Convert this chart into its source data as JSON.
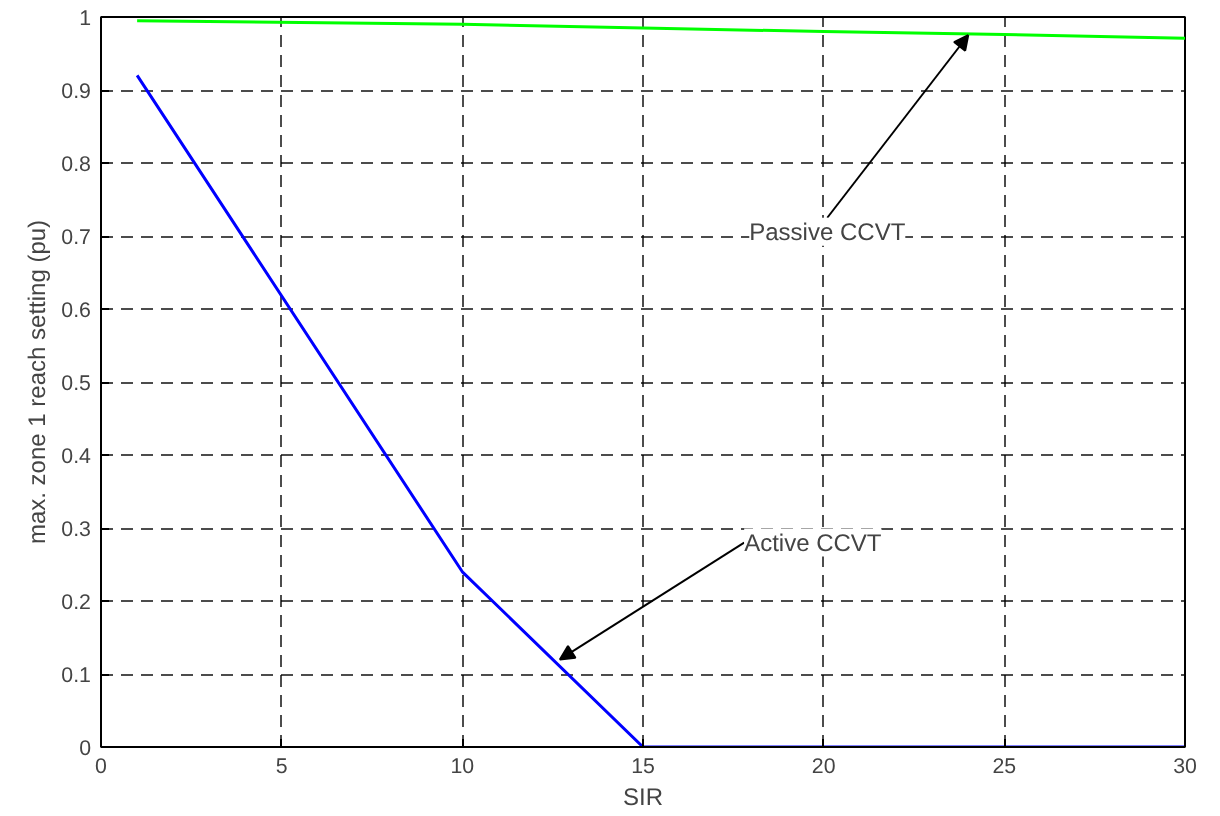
{
  "chart_data": {
    "type": "line",
    "xlabel": "SIR",
    "ylabel": "max. zone 1 reach setting (pu)",
    "x": [
      1,
      10,
      15,
      20,
      25,
      30
    ],
    "series": [
      {
        "color": "#0000ff",
        "values": [
          0.92,
          0.24,
          0,
          0,
          0,
          0
        ]
      },
      {
        "color": "#00ff00",
        "values": [
          0.995,
          0.99,
          0.985,
          0.98,
          0.976,
          0.971
        ]
      }
    ],
    "xlim": [
      0,
      30
    ],
    "ylim": [
      0,
      1
    ],
    "xticks": [
      0,
      5,
      10,
      15,
      20,
      25,
      30
    ],
    "yticks": [
      0,
      0.1,
      0.2,
      0.3,
      0.4,
      0.5,
      0.6,
      0.7,
      0.8,
      0.9,
      1
    ],
    "grid": true,
    "line_style": "solid",
    "annotations": [
      {
        "text": "Passive CCVT",
        "x": 24,
        "y": 0.975
      },
      {
        "text": "Active CCVT",
        "x": 12.7,
        "y": 0.12
      }
    ]
  }
}
